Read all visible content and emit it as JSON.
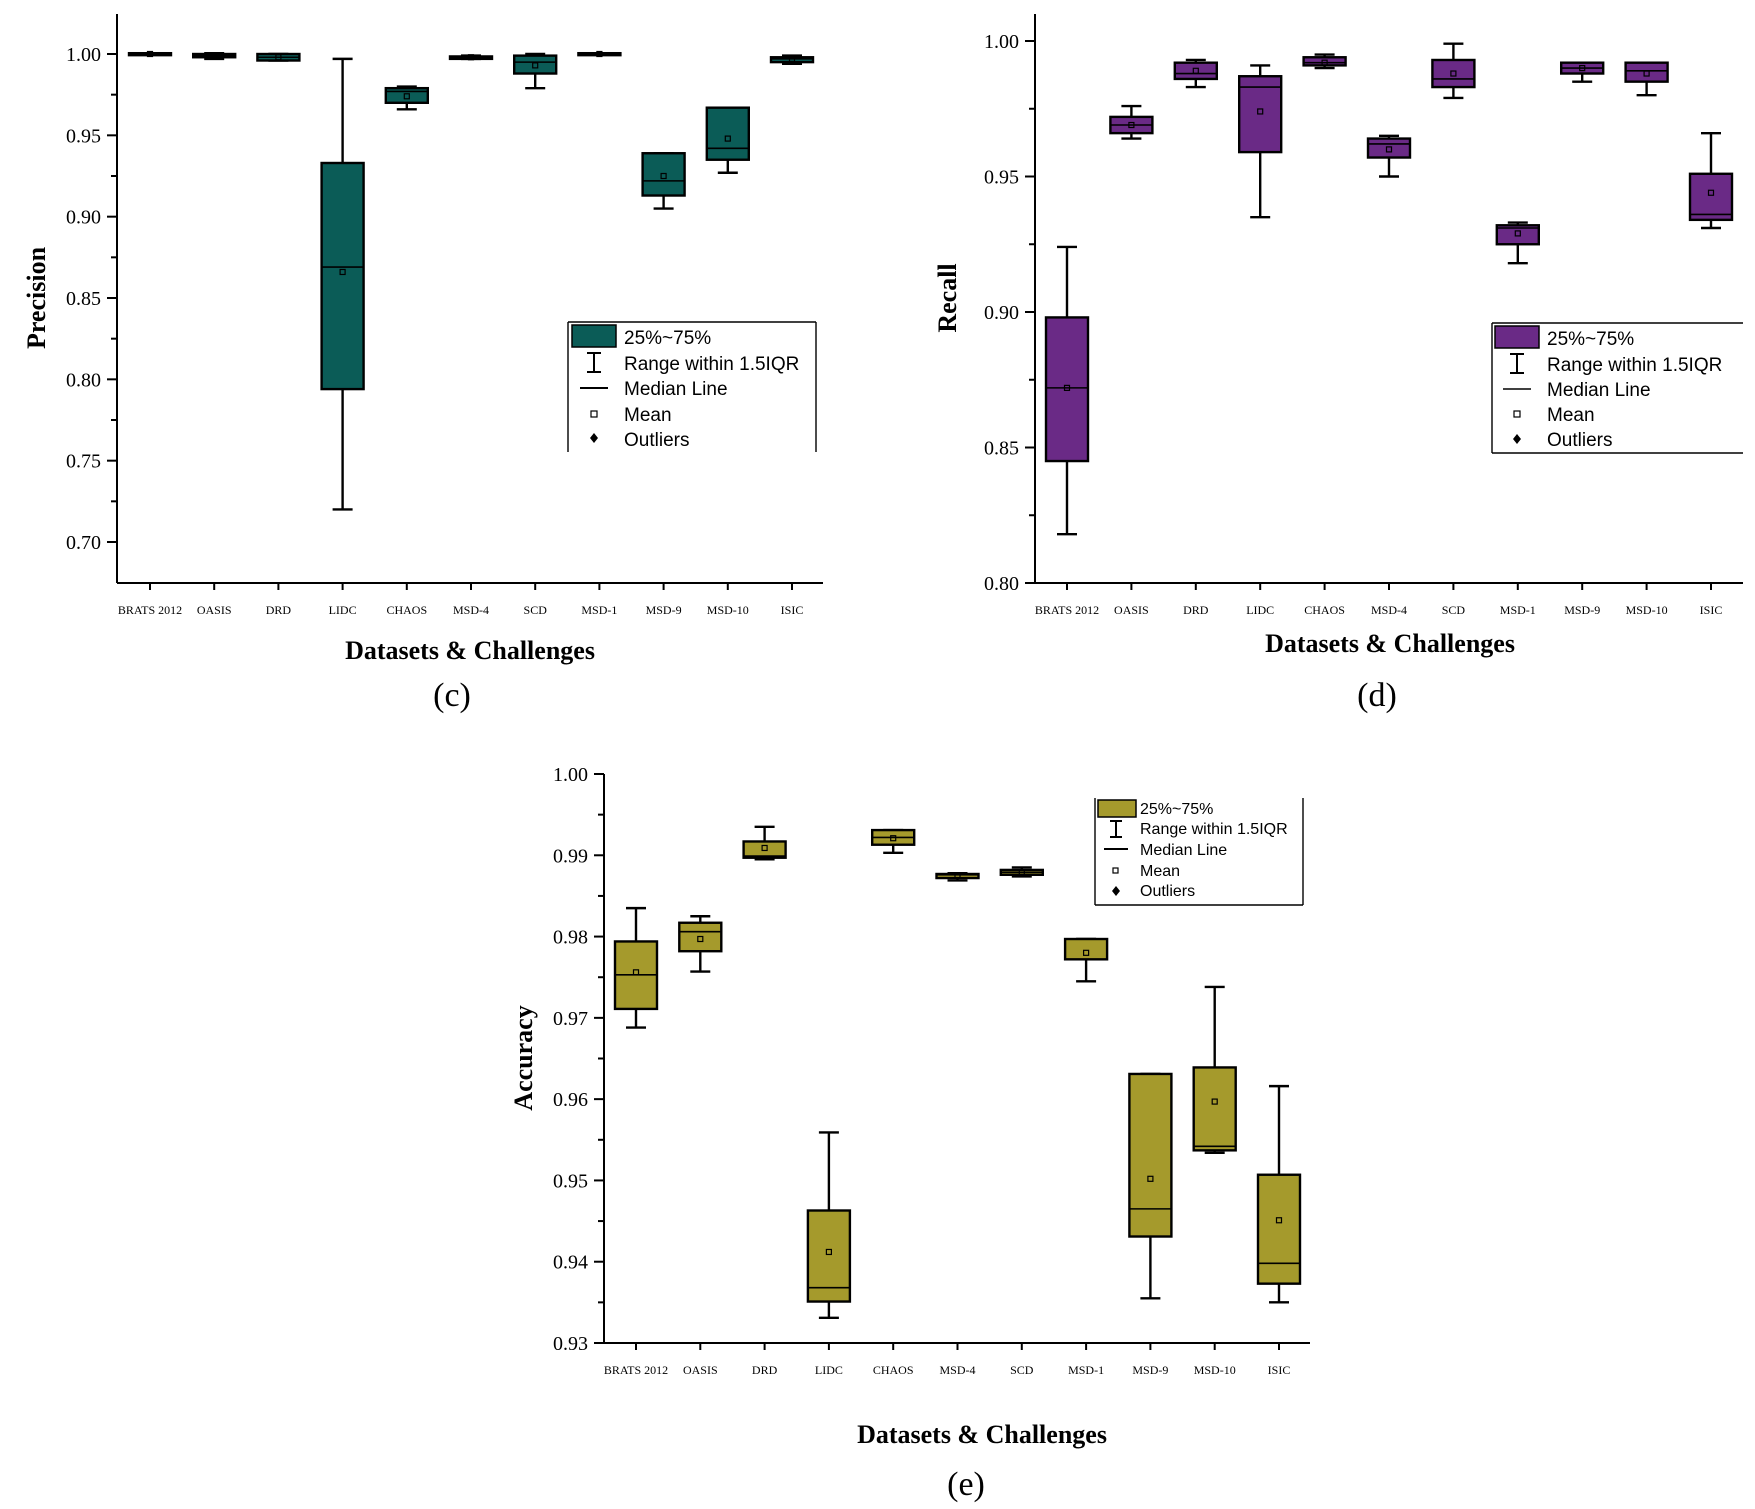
{
  "legend_labels": {
    "box": "25%~75%",
    "range": "Range within 1.5IQR",
    "median": "Median Line",
    "mean": "Mean",
    "outliers": "Outliers"
  },
  "chart_data": [
    {
      "panel": "(c)",
      "type": "box",
      "title": "",
      "xlabel": "Datasets & Challenges",
      "ylabel": "Precision",
      "color": "#0b5c57",
      "ylim": [
        0.69,
        1.025
      ],
      "yticks": [
        0.7,
        0.75,
        0.8,
        0.85,
        0.9,
        0.95,
        1.0
      ],
      "ytick_labels": [
        "0.70",
        "0.75",
        "0.80",
        "0.85",
        "0.90",
        "0.95",
        "1.00"
      ],
      "categories": [
        "BRATS 2012",
        "OASIS",
        "DRD",
        "LIDC",
        "CHAOS",
        "MSD-4",
        "SCD",
        "MSD-1",
        "MSD-9",
        "MSD-10",
        "ISIC"
      ],
      "legend_position": "center-right",
      "boxes": [
        {
          "min": 0.9995,
          "q1": 0.9995,
          "median": 1.0,
          "q3": 1.0005,
          "max": 1.0005,
          "mean": 1.0
        },
        {
          "min": 0.997,
          "q1": 0.998,
          "median": 0.999,
          "q3": 1.0,
          "max": 1.0005,
          "mean": 0.999
        },
        {
          "min": 0.996,
          "q1": 0.996,
          "median": 0.998,
          "q3": 1.0,
          "max": 1.0,
          "mean": 0.998
        },
        {
          "min": 0.72,
          "q1": 0.794,
          "median": 0.869,
          "q3": 0.933,
          "max": 0.997,
          "mean": 0.866
        },
        {
          "min": 0.966,
          "q1": 0.97,
          "median": 0.977,
          "q3": 0.979,
          "max": 0.98,
          "mean": 0.974
        },
        {
          "min": 0.997,
          "q1": 0.997,
          "median": 0.998,
          "q3": 0.9985,
          "max": 0.999,
          "mean": 0.998
        },
        {
          "min": 0.979,
          "q1": 0.988,
          "median": 0.995,
          "q3": 0.999,
          "max": 1.0,
          "mean": 0.993
        },
        {
          "min": 0.9995,
          "q1": 0.9995,
          "median": 1.0,
          "q3": 1.0005,
          "max": 1.0005,
          "mean": 1.0
        },
        {
          "min": 0.905,
          "q1": 0.913,
          "median": 0.922,
          "q3": 0.939,
          "max": 0.939,
          "mean": 0.925
        },
        {
          "min": 0.927,
          "q1": 0.935,
          "median": 0.942,
          "q3": 0.967,
          "max": 0.967,
          "mean": 0.948
        },
        {
          "min": 0.994,
          "q1": 0.995,
          "median": 0.997,
          "q3": 0.998,
          "max": 0.999,
          "mean": 0.997
        }
      ]
    },
    {
      "panel": "(d)",
      "type": "box",
      "title": "",
      "xlabel": "Datasets & Challenges",
      "ylabel": "Recall",
      "color": "#6a2a86",
      "ylim": [
        0.8,
        1.01
      ],
      "yticks": [
        0.8,
        0.85,
        0.9,
        0.95,
        1.0
      ],
      "ytick_labels": [
        "0.80",
        "0.85",
        "0.90",
        "0.95",
        "1.00"
      ],
      "categories": [
        "BRATS 2012",
        "OASIS",
        "DRD",
        "LIDC",
        "CHAOS",
        "MSD-4",
        "SCD",
        "MSD-1",
        "MSD-9",
        "MSD-10",
        "ISIC"
      ],
      "legend_position": "center-right",
      "boxes": [
        {
          "min": 0.818,
          "q1": 0.845,
          "median": 0.872,
          "q3": 0.898,
          "max": 0.924,
          "mean": 0.872
        },
        {
          "min": 0.964,
          "q1": 0.966,
          "median": 0.969,
          "q3": 0.972,
          "max": 0.976,
          "mean": 0.969
        },
        {
          "min": 0.983,
          "q1": 0.986,
          "median": 0.988,
          "q3": 0.992,
          "max": 0.993,
          "mean": 0.989
        },
        {
          "min": 0.935,
          "q1": 0.959,
          "median": 0.983,
          "q3": 0.987,
          "max": 0.991,
          "mean": 0.974
        },
        {
          "min": 0.99,
          "q1": 0.991,
          "median": 0.992,
          "q3": 0.994,
          "max": 0.995,
          "mean": 0.992
        },
        {
          "min": 0.95,
          "q1": 0.957,
          "median": 0.962,
          "q3": 0.964,
          "max": 0.965,
          "mean": 0.96
        },
        {
          "min": 0.979,
          "q1": 0.983,
          "median": 0.986,
          "q3": 0.993,
          "max": 0.999,
          "mean": 0.988
        },
        {
          "min": 0.918,
          "q1": 0.925,
          "median": 0.931,
          "q3": 0.932,
          "max": 0.933,
          "mean": 0.929
        },
        {
          "min": 0.985,
          "q1": 0.988,
          "median": 0.99,
          "q3": 0.992,
          "max": 0.992,
          "mean": 0.99
        },
        {
          "min": 0.98,
          "q1": 0.985,
          "median": 0.989,
          "q3": 0.992,
          "max": 0.992,
          "mean": 0.988
        },
        {
          "min": 0.931,
          "q1": 0.934,
          "median": 0.936,
          "q3": 0.951,
          "max": 0.966,
          "mean": 0.944
        }
      ]
    },
    {
      "panel": "(e)",
      "type": "box",
      "title": "",
      "xlabel": "Datasets & Challenges",
      "ylabel": "Accuracy",
      "color": "#a59a2c",
      "ylim": [
        0.93,
        1.0
      ],
      "yticks": [
        0.93,
        0.94,
        0.95,
        0.96,
        0.97,
        0.98,
        0.99,
        1.0
      ],
      "ytick_labels": [
        "0.93",
        "0.94",
        "0.95",
        "0.96",
        "0.97",
        "0.98",
        "0.99",
        "1.00"
      ],
      "categories": [
        "BRATS 2012",
        "OASIS",
        "DRD",
        "LIDC",
        "CHAOS",
        "MSD-4",
        "SCD",
        "MSD-1",
        "MSD-9",
        "MSD-10",
        "ISIC"
      ],
      "legend_position": "top-right",
      "boxes": [
        {
          "min": 0.9688,
          "q1": 0.9711,
          "median": 0.9753,
          "q3": 0.9794,
          "max": 0.9835,
          "mean": 0.9756
        },
        {
          "min": 0.9757,
          "q1": 0.9782,
          "median": 0.9806,
          "q3": 0.9817,
          "max": 0.9825,
          "mean": 0.9797
        },
        {
          "min": 0.9895,
          "q1": 0.9897,
          "median": 0.9899,
          "q3": 0.9917,
          "max": 0.9935,
          "mean": 0.9909
        },
        {
          "min": 0.9331,
          "q1": 0.9351,
          "median": 0.9368,
          "q3": 0.9463,
          "max": 0.9559,
          "mean": 0.9412
        },
        {
          "min": 0.9903,
          "q1": 0.9913,
          "median": 0.9922,
          "q3": 0.9931,
          "max": 0.9931,
          "mean": 0.9921
        },
        {
          "min": 0.9869,
          "q1": 0.9872,
          "median": 0.9876,
          "q3": 0.9877,
          "max": 0.9878,
          "mean": 0.9875
        },
        {
          "min": 0.9874,
          "q1": 0.9876,
          "median": 0.9879,
          "q3": 0.9882,
          "max": 0.9885,
          "mean": 0.9879
        },
        {
          "min": 0.9745,
          "q1": 0.9772,
          "median": 0.9797,
          "q3": 0.9797,
          "max": 0.9797,
          "mean": 0.978
        },
        {
          "min": 0.9355,
          "q1": 0.9431,
          "median": 0.9465,
          "q3": 0.9631,
          "max": 0.9631,
          "mean": 0.9502
        },
        {
          "min": 0.9534,
          "q1": 0.9537,
          "median": 0.9542,
          "q3": 0.9639,
          "max": 0.9738,
          "mean": 0.9597
        },
        {
          "min": 0.935,
          "q1": 0.9373,
          "median": 0.9398,
          "q3": 0.9507,
          "max": 0.9616,
          "mean": 0.9451
        }
      ]
    }
  ]
}
